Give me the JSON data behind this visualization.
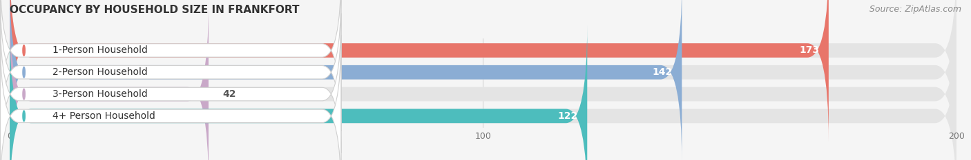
{
  "title": "OCCUPANCY BY HOUSEHOLD SIZE IN FRANKFORT",
  "source": "Source: ZipAtlas.com",
  "categories": [
    "1-Person Household",
    "2-Person Household",
    "3-Person Household",
    "4+ Person Household"
  ],
  "values": [
    173,
    142,
    42,
    122
  ],
  "bar_colors": [
    "#E8756A",
    "#8BADD4",
    "#C9A8C8",
    "#4DBDBD"
  ],
  "xlim": [
    0,
    200
  ],
  "xticks": [
    0,
    100,
    200
  ],
  "background_color": "#f5f5f5",
  "bar_bg_color": "#e4e4e4",
  "title_fontsize": 11,
  "source_fontsize": 9,
  "label_fontsize": 10,
  "value_fontsize": 10,
  "bar_height": 0.65,
  "figsize": [
    14.06,
    2.33
  ],
  "dpi": 100
}
